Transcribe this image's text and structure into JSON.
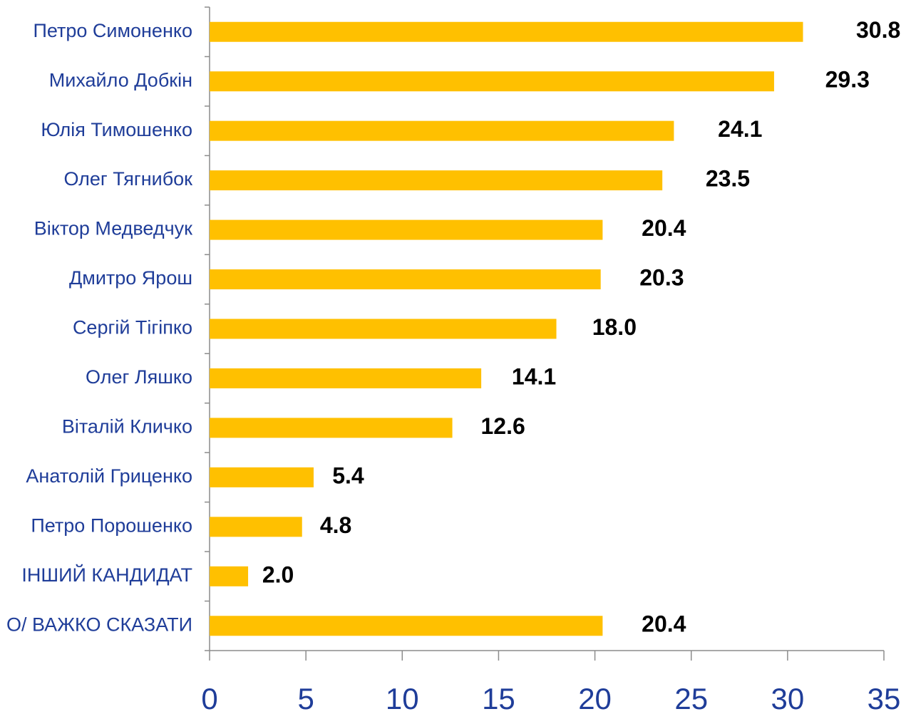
{
  "chart_data": {
    "type": "bar",
    "orientation": "horizontal",
    "categories": [
      "Петро Симоненко",
      "Михайло Добкін",
      "Юлія Тимошенко",
      "Олег Тягнибок",
      "Віктор Медведчук",
      "Дмитро Ярош",
      "Сергій Тігіпко",
      "Олег Ляшко",
      "Віталій Кличко",
      "Анатолій Гриценко",
      "Петро Порошенко",
      "ІНШИЙ КАНДИДАТ",
      "О/ ВАЖКО СКАЗАТИ"
    ],
    "values": [
      30.8,
      29.3,
      24.1,
      23.5,
      20.4,
      20.3,
      18.0,
      14.1,
      12.6,
      5.4,
      4.8,
      2.0,
      20.4
    ],
    "value_labels": [
      "30.8",
      "29.3",
      "24.1",
      "23.5",
      "20.4",
      "20.3",
      "18.0",
      "14.1",
      "12.6",
      "5.4",
      "4.8",
      "2.0",
      "20.4"
    ],
    "color": "#ffc000",
    "xlim": [
      0,
      35
    ],
    "xticks": [
      0,
      5,
      10,
      15,
      20,
      25,
      30,
      35
    ],
    "grid": false
  }
}
